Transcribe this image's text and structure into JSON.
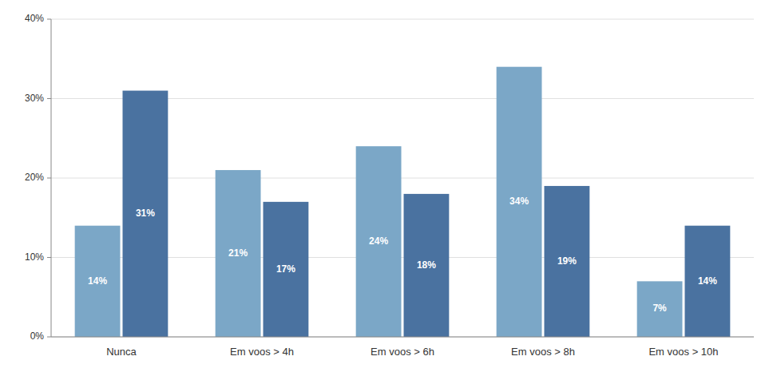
{
  "chart_data": {
    "type": "bar",
    "categories": [
      "Nunca",
      "Em voos > 4h",
      "Em voos > 6h",
      "Em voos > 8h",
      "Em voos > 10h"
    ],
    "series": [
      {
        "color": "#7ba7c7",
        "values": [
          14,
          21,
          24,
          34,
          7
        ],
        "value_labels": [
          "14%",
          "21%",
          "24%",
          "34%",
          "7%"
        ]
      },
      {
        "color": "#4a72a0",
        "values": [
          31,
          17,
          18,
          19,
          14
        ],
        "value_labels": [
          "31%",
          "17%",
          "18%",
          "19%",
          "14%"
        ]
      }
    ],
    "ylim": [
      0,
      40
    ],
    "yticks": [
      {
        "value": 0,
        "label": "0%"
      },
      {
        "value": 10,
        "label": "10%"
      },
      {
        "value": 20,
        "label": "20%"
      },
      {
        "value": 30,
        "label": "30%"
      },
      {
        "value": 40,
        "label": "40%"
      }
    ],
    "grid": true,
    "data_labels": true
  }
}
